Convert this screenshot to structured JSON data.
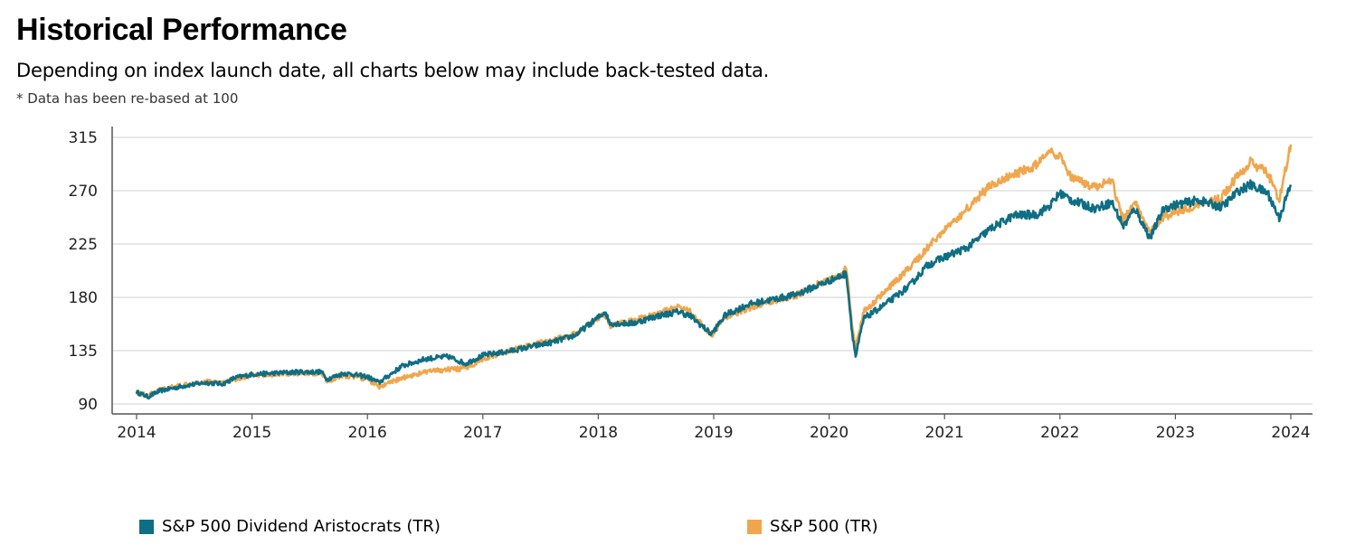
{
  "header": {
    "title": "Historical Performance",
    "subtitle": "Depending on index launch date, all charts below may include back-tested data.",
    "note": "* Data has been re-based at 100"
  },
  "colors": {
    "aristocrats": "#0e6e84",
    "sp500": "#f0a64c",
    "grid": "#d9d9d9",
    "axis": "#555555"
  },
  "chart_data": {
    "type": "line",
    "title": "",
    "xlabel": "",
    "ylabel": "",
    "ylim": [
      85,
      320
    ],
    "xlim": [
      2013.9,
      2024.2
    ],
    "yticks": [
      90,
      135,
      180,
      225,
      270,
      315
    ],
    "xticks": [
      "2014",
      "2015",
      "2016",
      "2017",
      "2018",
      "2019",
      "2020",
      "2021",
      "2022",
      "2023",
      "2024"
    ],
    "grid": "horizontal",
    "legend": "bottom",
    "series": [
      {
        "name": "S&P 500 Dividend Aristocrats (TR)",
        "color": "#0e6e84",
        "x": [
          2014.0,
          2014.1,
          2014.2,
          2014.3,
          2014.45,
          2014.6,
          2014.75,
          2014.85,
          2015.0,
          2015.2,
          2015.4,
          2015.6,
          2015.65,
          2015.8,
          2016.0,
          2016.1,
          2016.3,
          2016.5,
          2016.7,
          2016.85,
          2017.0,
          2017.2,
          2017.4,
          2017.6,
          2017.8,
          2018.0,
          2018.06,
          2018.1,
          2018.3,
          2018.5,
          2018.7,
          2018.8,
          2018.98,
          2019.1,
          2019.3,
          2019.5,
          2019.7,
          2019.9,
          2020.1,
          2020.15,
          2020.2,
          2020.23,
          2020.3,
          2020.5,
          2020.7,
          2020.85,
          2021.0,
          2021.2,
          2021.4,
          2021.6,
          2021.8,
          2021.92,
          2022.0,
          2022.1,
          2022.3,
          2022.45,
          2022.55,
          2022.65,
          2022.78,
          2022.9,
          2023.0,
          2023.2,
          2023.4,
          2023.55,
          2023.65,
          2023.8,
          2023.9,
          2024.0
        ],
        "values": [
          100,
          96,
          101,
          103,
          106,
          108,
          107,
          112,
          115,
          116,
          117,
          117,
          111,
          116,
          113,
          108,
          122,
          128,
          130,
          124,
          131,
          134,
          138,
          142,
          148,
          163,
          168,
          158,
          158,
          164,
          168,
          164,
          149,
          165,
          174,
          178,
          182,
          190,
          198,
          200,
          150,
          130,
          162,
          175,
          190,
          207,
          214,
          222,
          238,
          249,
          250,
          258,
          268,
          262,
          255,
          260,
          240,
          255,
          230,
          255,
          258,
          262,
          256,
          270,
          275,
          268,
          247,
          275
        ]
      },
      {
        "name": "S&P 500 (TR)",
        "color": "#f0a64c",
        "x": [
          2014.0,
          2014.1,
          2014.2,
          2014.3,
          2014.45,
          2014.6,
          2014.75,
          2014.85,
          2015.0,
          2015.2,
          2015.4,
          2015.6,
          2015.65,
          2015.8,
          2016.0,
          2016.1,
          2016.3,
          2016.5,
          2016.7,
          2016.85,
          2017.0,
          2017.2,
          2017.4,
          2017.6,
          2017.8,
          2018.0,
          2018.06,
          2018.1,
          2018.3,
          2018.5,
          2018.7,
          2018.8,
          2018.98,
          2019.1,
          2019.3,
          2019.5,
          2019.7,
          2019.9,
          2020.1,
          2020.15,
          2020.2,
          2020.23,
          2020.3,
          2020.5,
          2020.7,
          2020.85,
          2021.0,
          2021.2,
          2021.4,
          2021.6,
          2021.8,
          2021.92,
          2022.0,
          2022.1,
          2022.3,
          2022.45,
          2022.55,
          2022.65,
          2022.78,
          2022.9,
          2023.0,
          2023.2,
          2023.4,
          2023.55,
          2023.65,
          2023.8,
          2023.9,
          2024.0
        ],
        "values": [
          100,
          97,
          102,
          104,
          107,
          109,
          108,
          111,
          114,
          115,
          116,
          116,
          109,
          114,
          111,
          104,
          112,
          117,
          119,
          120,
          128,
          134,
          139,
          144,
          149,
          162,
          166,
          156,
          160,
          166,
          172,
          168,
          148,
          163,
          171,
          177,
          181,
          191,
          198,
          205,
          155,
          138,
          168,
          186,
          205,
          222,
          237,
          255,
          275,
          283,
          292,
          302,
          298,
          280,
          273,
          278,
          245,
          262,
          235,
          248,
          252,
          258,
          264,
          284,
          294,
          285,
          262,
          309
        ]
      }
    ]
  }
}
